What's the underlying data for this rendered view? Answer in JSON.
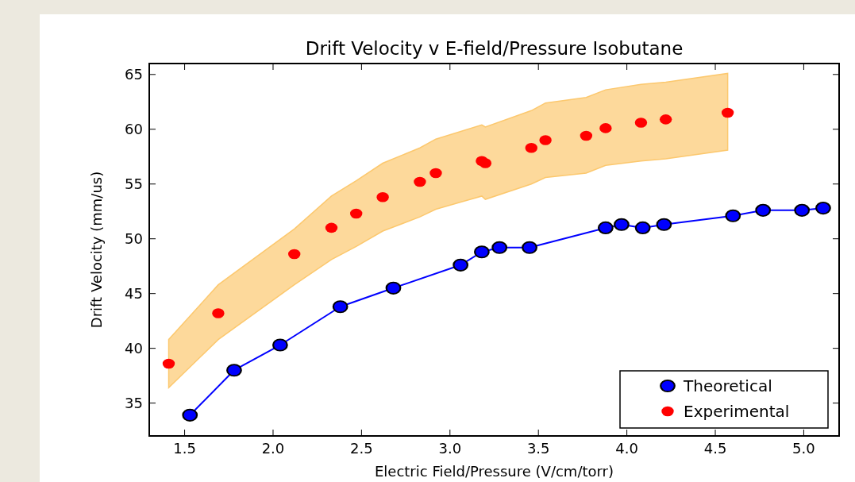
{
  "chart_data": {
    "type": "line",
    "title": "Drift Velocity v E-field/Pressure Isobutane",
    "xlabel": "Electric Field/Pressure (V/cm/torr)",
    "ylabel": "Drift Velocity (mm/us)",
    "xlim": [
      1.3,
      5.2
    ],
    "ylim": [
      32,
      66
    ],
    "xticks": [
      1.5,
      {
        "value": 2,
        "label": "2.0"
      },
      2.5,
      {
        "value": 3,
        "label": "3.0"
      },
      3.5,
      {
        "value": 4,
        "label": "4.0"
      },
      4.5,
      {
        "value": 5,
        "label": "5.0"
      }
    ],
    "yticks": [
      35,
      40,
      45,
      50,
      55,
      60,
      65
    ],
    "grid": false,
    "legend": "bottom right",
    "series": [
      {
        "name": "Theoretical",
        "type": "line",
        "marker": "circle",
        "line_style": "solid",
        "color": "#0000ff",
        "x": [
          1.53,
          1.78,
          2.04,
          2.38,
          2.68,
          3.06,
          3.18,
          3.28,
          3.45,
          3.88,
          3.97,
          4.09,
          4.21,
          4.6,
          4.77,
          4.99,
          5.11
        ],
        "values": [
          33.9,
          38.0,
          40.3,
          43.8,
          45.5,
          47.6,
          48.8,
          49.2,
          49.2,
          51.0,
          51.3,
          51.0,
          51.3,
          52.1,
          52.6,
          52.6,
          52.8
        ]
      },
      {
        "name": "Experimental",
        "type": "scatter",
        "marker": "circle",
        "color": "#ff0000",
        "x": [
          1.41,
          1.69,
          2.12,
          2.33,
          2.47,
          2.62,
          2.83,
          2.92,
          3.18,
          3.2,
          3.46,
          3.54,
          3.77,
          3.88,
          4.08,
          4.22,
          4.57
        ],
        "values": [
          38.6,
          43.2,
          48.6,
          51.0,
          52.3,
          53.8,
          55.2,
          56.0,
          57.1,
          56.9,
          58.3,
          59.0,
          59.4,
          60.1,
          60.6,
          60.9,
          61.5
        ],
        "lower": [
          36.4,
          40.8,
          45.8,
          48.1,
          49.3,
          50.7,
          52.0,
          52.7,
          53.9,
          53.6,
          55.0,
          55.6,
          56.0,
          56.7,
          57.1,
          57.3,
          58.1
        ],
        "upper": [
          40.8,
          45.8,
          50.9,
          53.9,
          55.3,
          56.9,
          58.3,
          59.1,
          60.4,
          60.2,
          61.7,
          62.4,
          62.9,
          63.6,
          64.1,
          64.3,
          65.1
        ]
      }
    ]
  }
}
